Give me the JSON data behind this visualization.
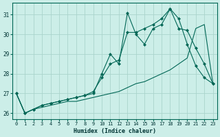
{
  "xlabel": "Humidex (Indice chaleur)",
  "background_color": "#cceee8",
  "grid_color": "#aad4cc",
  "line_color": "#006655",
  "xlim": [
    -0.5,
    23.5
  ],
  "ylim": [
    25.7,
    31.6
  ],
  "yticks": [
    26,
    27,
    28,
    29,
    30,
    31
  ],
  "xticks": [
    0,
    1,
    2,
    3,
    4,
    5,
    6,
    7,
    8,
    9,
    10,
    11,
    12,
    13,
    14,
    15,
    16,
    17,
    18,
    19,
    20,
    21,
    22,
    23
  ],
  "series": [
    {
      "x": [
        0,
        1,
        2,
        3,
        4,
        5,
        6,
        7,
        8,
        9,
        10,
        11,
        12,
        13,
        14,
        15,
        16,
        17,
        18,
        19,
        20,
        21,
        22,
        23
      ],
      "y": [
        27.0,
        26.0,
        26.2,
        26.3,
        26.4,
        26.5,
        26.6,
        26.6,
        26.7,
        26.8,
        26.9,
        27.0,
        27.1,
        27.3,
        27.5,
        27.6,
        27.8,
        28.0,
        28.2,
        28.5,
        28.8,
        30.3,
        30.5,
        27.5
      ],
      "has_markers": false
    },
    {
      "x": [
        0,
        1,
        2,
        3,
        4,
        5,
        6,
        7,
        8,
        9,
        10,
        11,
        12,
        13,
        14,
        15,
        16,
        17,
        18,
        19,
        20,
        21,
        22,
        23
      ],
      "y": [
        27.0,
        26.0,
        26.2,
        26.4,
        26.5,
        26.6,
        26.7,
        26.8,
        26.9,
        27.0,
        28.0,
        29.0,
        28.5,
        31.1,
        30.0,
        29.5,
        30.3,
        30.5,
        31.3,
        30.8,
        29.5,
        28.4,
        27.8,
        27.5
      ],
      "has_markers": true
    },
    {
      "x": [
        0,
        1,
        2,
        3,
        4,
        5,
        6,
        7,
        8,
        9,
        10,
        11,
        12,
        13,
        14,
        15,
        16,
        17,
        18,
        19,
        20,
        21,
        22,
        23
      ],
      "y": [
        27.0,
        26.0,
        26.2,
        26.4,
        26.5,
        26.6,
        26.7,
        26.8,
        26.9,
        27.1,
        27.8,
        28.5,
        28.7,
        30.1,
        30.1,
        30.3,
        30.5,
        30.8,
        31.3,
        30.3,
        30.2,
        29.3,
        28.5,
        27.5
      ],
      "has_markers": true
    }
  ]
}
